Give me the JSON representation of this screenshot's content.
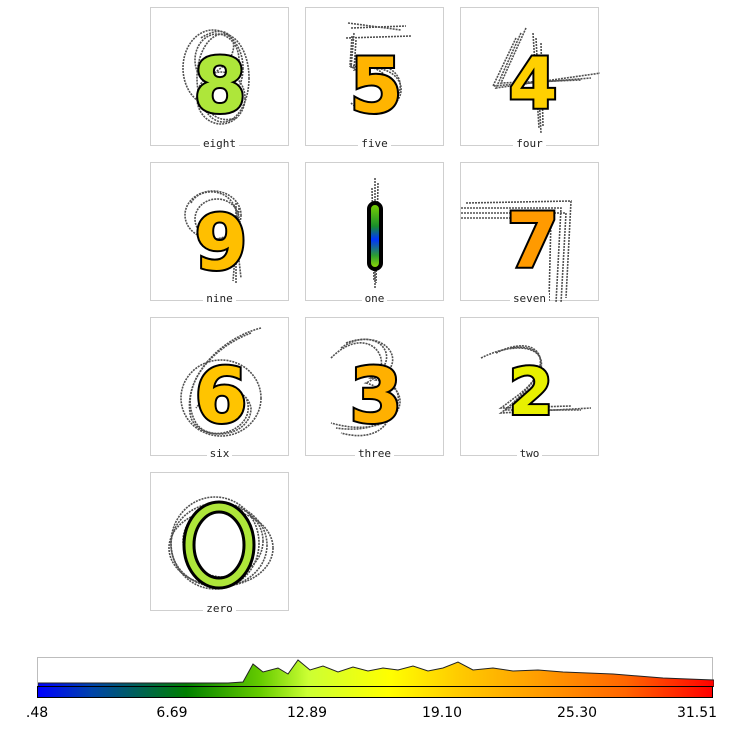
{
  "cells": [
    {
      "digit": "8",
      "label": "eight"
    },
    {
      "digit": "5",
      "label": "five"
    },
    {
      "digit": "4",
      "label": "four"
    },
    {
      "digit": "9",
      "label": "nine"
    },
    {
      "digit": "1",
      "label": "one"
    },
    {
      "digit": "7",
      "label": "seven"
    },
    {
      "digit": "6",
      "label": "six"
    },
    {
      "digit": "3",
      "label": "three"
    },
    {
      "digit": "2",
      "label": "two"
    },
    {
      "digit": "0",
      "label": "zero"
    }
  ],
  "colorbar": {
    "tick_labels": [
      ".48",
      "6.69",
      "12.89",
      "19.10",
      "25.30",
      "31.51"
    ],
    "min": 0.48,
    "max": 31.51,
    "colors": [
      "#0000ff",
      "#008000",
      "#ccff33",
      "#ffff00",
      "#ff9900",
      "#ff0000"
    ]
  },
  "colors": {
    "stroke_shadow": "#333333",
    "outline": "#000000"
  }
}
